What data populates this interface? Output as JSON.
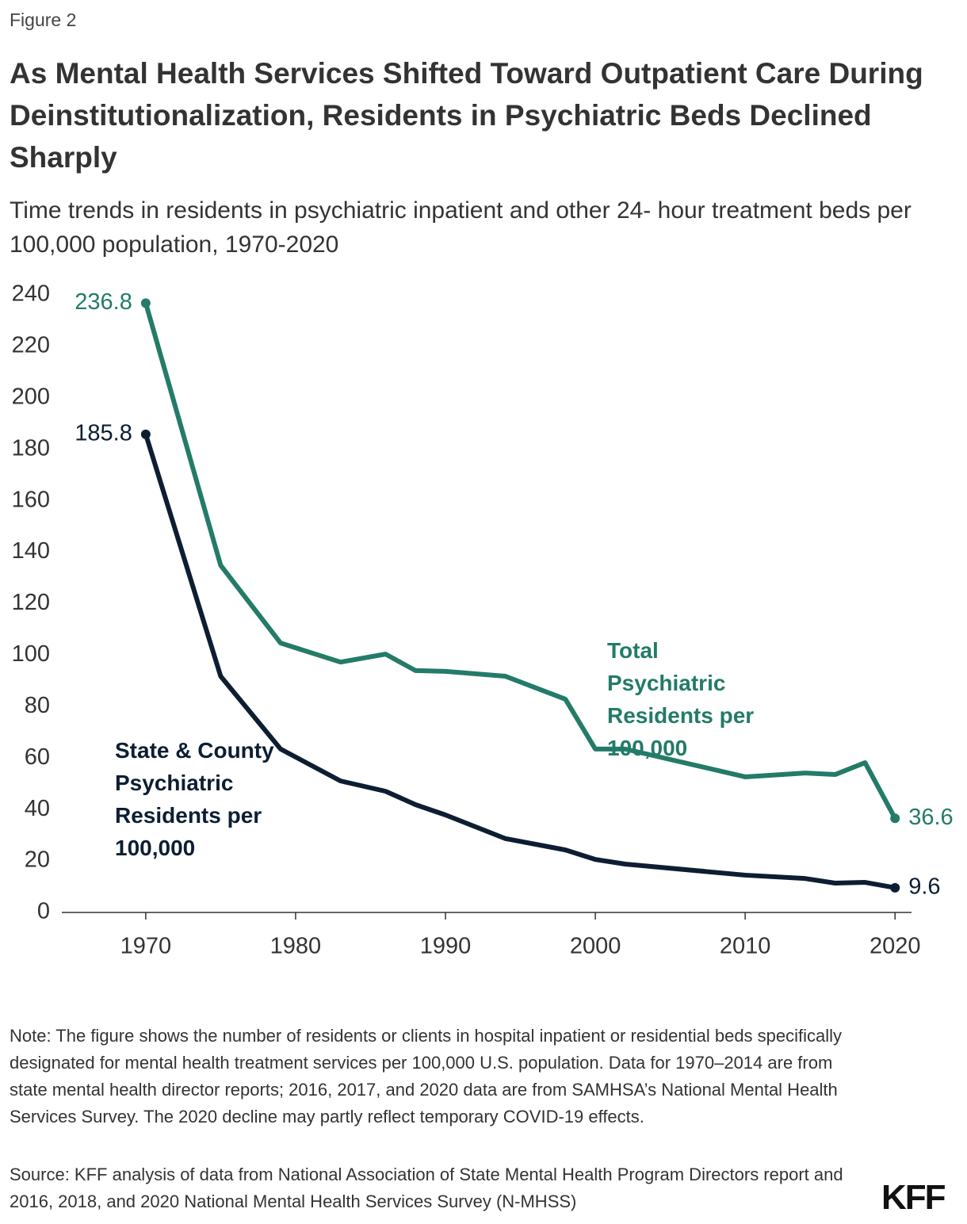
{
  "figure_label": "Figure 2",
  "chart_data": {
    "type": "line",
    "title": "As Mental Health Services Shifted Toward Outpatient Care During Deinstitutionalization, Residents in Psychiatric Beds Declined Sharply",
    "subtitle": "Time trends in residents in psychiatric inpatient and other 24- hour treatment beds per 100,000 population, 1970-2020",
    "x": [
      1970,
      1975,
      1979,
      1983,
      1986,
      1988,
      1990,
      1994,
      1998,
      2000,
      2002,
      2010,
      2014,
      2016,
      2018,
      2020
    ],
    "series": [
      {
        "name": "Total Psychiatric Residents per 100,000",
        "color": "#237b68",
        "values": [
          236.8,
          134.9,
          104.7,
          97.3,
          100.4,
          94.0,
          93.7,
          91.8,
          82.9,
          63.5,
          63.5,
          52.7,
          54.2,
          53.6,
          58.2,
          36.6
        ]
      },
      {
        "name": "State & County Psychiatric Residents per 100,000",
        "color": "#0d1e33",
        "values": [
          185.8,
          91.8,
          63.5,
          51.1,
          47.1,
          41.9,
          37.9,
          28.7,
          24.3,
          20.6,
          18.8,
          14.5,
          13.2,
          11.4,
          11.7,
          9.6
        ]
      }
    ],
    "xlim": [
      1964.4,
      2021.1
    ],
    "xticks": [
      1970,
      1980,
      1990,
      2000,
      2010,
      2020
    ],
    "ylim": [
      0,
      240
    ],
    "yticks": [
      0,
      20,
      40,
      60,
      80,
      100,
      120,
      140,
      160,
      180,
      200,
      220,
      240
    ],
    "grid": false
  },
  "note": "Note: The figure shows the number of residents or clients in hospital inpatient or residential beds specifically designated for mental health treatment services per 100,000 U.S. population. Data for 1970–2014 are from state mental health director reports; 2016, 2017, and 2020 data are from SAMHSA’s National Mental Health Services Survey. The 2020 decline may partly reflect temporary COVID-19 effects.",
  "source": "Source: KFF analysis of data from National Association of State Mental Health Program Directors report and 2016, 2018, and 2020 National Mental Health Services Survey (N-MHSS)",
  "logo": "KFF"
}
